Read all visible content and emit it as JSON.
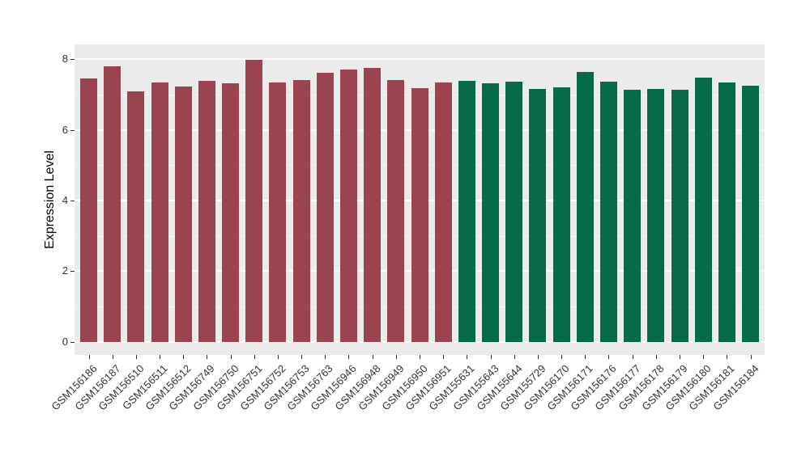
{
  "chart_data": {
    "type": "bar",
    "title": "",
    "xlabel": "",
    "ylabel": "Expression Level",
    "ylim": [
      0,
      8.42
    ],
    "yticks": [
      0,
      2,
      4,
      6,
      8
    ],
    "y_minor_ticks": [
      1,
      3,
      5,
      7
    ],
    "grid": true,
    "legend": "none",
    "panel_bg": "#EBEBEB",
    "gridline_color": "#FFFFFF",
    "tick_color": "#333333",
    "categories": [
      "GSM156186",
      "GSM156187",
      "GSM156510",
      "GSM156511",
      "GSM156512",
      "GSM156749",
      "GSM156750",
      "GSM156751",
      "GSM156752",
      "GSM156753",
      "GSM156763",
      "GSM156946",
      "GSM156948",
      "GSM156949",
      "GSM156950",
      "GSM156951",
      "GSM155631",
      "GSM155643",
      "GSM155644",
      "GSM155729",
      "GSM156170",
      "GSM156171",
      "GSM156176",
      "GSM156177",
      "GSM156178",
      "GSM156179",
      "GSM156180",
      "GSM156181",
      "GSM156184"
    ],
    "values": [
      7.45,
      7.8,
      7.08,
      7.34,
      7.22,
      7.39,
      7.31,
      7.99,
      7.34,
      7.4,
      7.61,
      7.7,
      7.76,
      7.41,
      7.18,
      7.34,
      7.39,
      7.31,
      7.37,
      7.16,
      7.21,
      7.64,
      7.36,
      7.14,
      7.16,
      7.13,
      7.48,
      7.33,
      7.25
    ],
    "bar_groups": [
      "group1",
      "group1",
      "group1",
      "group1",
      "group1",
      "group1",
      "group1",
      "group1",
      "group1",
      "group1",
      "group1",
      "group1",
      "group1",
      "group1",
      "group1",
      "group1",
      "group2",
      "group2",
      "group2",
      "group2",
      "group2",
      "group2",
      "group2",
      "group2",
      "group2",
      "group2",
      "group2",
      "group2",
      "group2"
    ],
    "group_colors": {
      "group1": "#9A4351",
      "group2": "#056B4A"
    }
  }
}
